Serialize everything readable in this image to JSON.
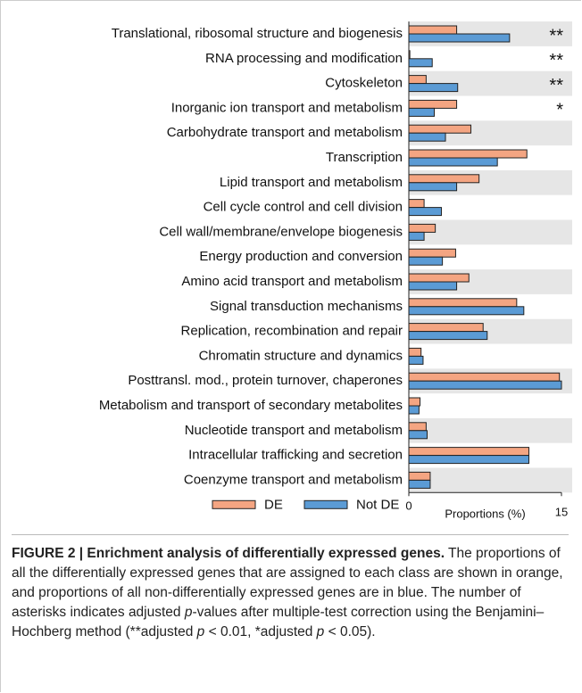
{
  "chart_data": {
    "type": "barh",
    "categories": [
      "Translational, ribosomal structure and biogenesis",
      "RNA processing and modification",
      "Cytoskeleton",
      "Inorganic ion transport and metabolism",
      "Carbohydrate transport and metabolism",
      "Transcription",
      "Lipid transport and metabolism",
      "Cell cycle control and cell division",
      "Cell wall/membrane/envelope biogenesis",
      "Energy production and conversion",
      "Amino acid transport and metabolism",
      "Signal transduction mechanisms",
      "Replication, recombination and repair",
      "Chromatin structure and dynamics",
      "Posttransl. mod., protein turnover, chaperones",
      "Metabolism and transport of secondary metabolites",
      "Nucleotide transport and metabolism",
      "Intracellular trafficking and secretion",
      "Coenzyme transport and metabolism"
    ],
    "series": [
      {
        "name": "DE",
        "color": "#f4a582",
        "values": [
          4.7,
          0.1,
          1.7,
          4.7,
          6.1,
          11.6,
          6.9,
          1.5,
          2.6,
          4.6,
          5.9,
          10.6,
          7.3,
          1.2,
          14.8,
          1.1,
          1.7,
          11.8,
          2.1
        ]
      },
      {
        "name": "Not DE",
        "color": "#5b9bd5",
        "values": [
          9.9,
          2.3,
          4.8,
          2.5,
          3.6,
          8.7,
          4.7,
          3.2,
          1.5,
          3.3,
          4.7,
          11.3,
          7.7,
          1.4,
          15.0,
          1.0,
          1.8,
          11.8,
          2.1
        ]
      }
    ],
    "significance": [
      "**",
      "**",
      "**",
      "*",
      null,
      null,
      null,
      null,
      null,
      null,
      null,
      null,
      null,
      null,
      null,
      null,
      null,
      null,
      null
    ],
    "xlabel": "Proportions (%)",
    "xlim": [
      0,
      15
    ],
    "xticks": [
      0,
      15
    ],
    "legend": "bottom"
  },
  "caption": {
    "title": "FIGURE 2 | Enrichment analysis of differentially expressed genes.",
    "body": [
      " The proportions of all the differentially expressed genes that are assigned to each class are shown in orange, and proportions of all non-differentially expressed genes are in blue. The number of asterisks indicates adjusted ",
      "p",
      "-values after multiple-test correction using the Benjamini–Hochberg method (**adjusted ",
      "p",
      " < 0.01, *adjusted ",
      "p",
      " < 0.05)."
    ]
  }
}
